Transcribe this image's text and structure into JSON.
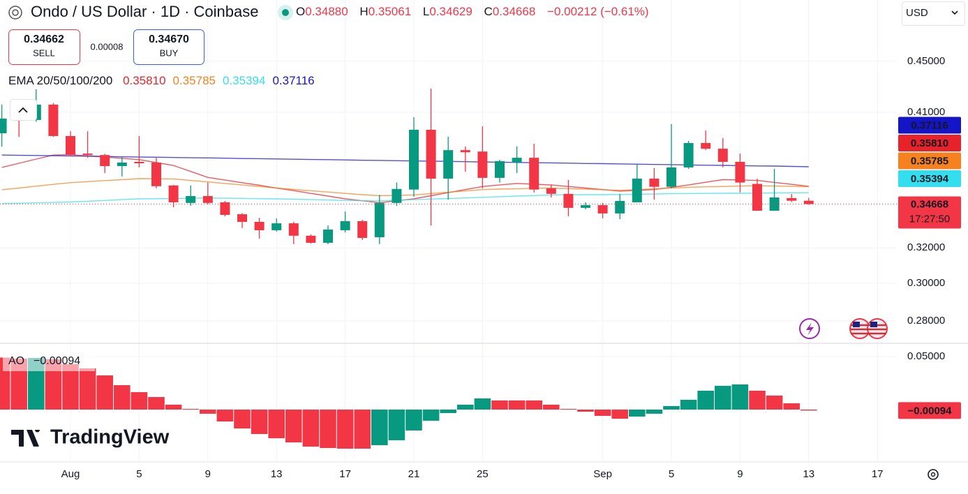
{
  "ui": {
    "currency": "USD",
    "logo": "TradingView",
    "trade": {
      "sell": {
        "price": "0.34662",
        "label": "SELL"
      },
      "spread": "0.00008",
      "buy": {
        "price": "0.34670",
        "label": "BUY"
      }
    },
    "header": {
      "fields": [
        {
          "key": "O",
          "value": "0.34880"
        },
        {
          "key": "H",
          "value": "0.35061"
        },
        {
          "key": "L",
          "value": "0.34629"
        },
        {
          "key": "C",
          "value": "0.34668"
        }
      ],
      "change": "−0.00212 (−0.61%)"
    }
  },
  "chart_data": [
    {
      "type": "candlestick",
      "title": "Ondo / US Dollar · 1D · Coinbase",
      "categories": [
        null,
        null,
        null,
        null,
        "Aug",
        null,
        null,
        null,
        "5",
        null,
        null,
        null,
        "9",
        null,
        null,
        null,
        "13",
        null,
        null,
        null,
        "17",
        null,
        null,
        null,
        "21",
        null,
        null,
        null,
        "25",
        null,
        null,
        null,
        null,
        null,
        null,
        "Sep",
        null,
        null,
        null,
        "5",
        null,
        null,
        null,
        "9",
        null,
        null,
        null,
        "13",
        null,
        null,
        null,
        "17"
      ],
      "open": [
        0.3946,
        0.4053,
        0.4043,
        0.4158,
        0.3926,
        0.3802,
        0.3792,
        0.3716,
        0.3745,
        0.374,
        0.3587,
        0.3474,
        0.3518,
        0.3478,
        0.3403,
        0.3356,
        0.3305,
        0.3347,
        0.3272,
        0.323,
        0.3305,
        0.336,
        0.3263,
        0.3474,
        0.356,
        0.3971,
        0.3632,
        0.3826,
        0.3816,
        0.3637,
        0.374,
        0.3773,
        0.3568,
        0.3532,
        0.3443,
        0.346,
        0.3408,
        0.3478,
        0.3632,
        0.3578,
        0.3707,
        0.3876,
        0.3836,
        0.3745,
        0.3597,
        0.3425,
        0.3505,
        0.3488,
        null,
        null,
        null,
        null
      ],
      "high": [
        0.4158,
        0.411,
        0.4276,
        0.417,
        0.396,
        0.396,
        0.38,
        0.3778,
        0.3926,
        0.3778,
        0.359,
        0.3587,
        0.3606,
        0.3487,
        0.341,
        0.3381,
        0.3377,
        0.3356,
        0.328,
        0.3334,
        0.342,
        0.3368,
        0.3526,
        0.3606,
        0.4064,
        0.4282,
        0.3921,
        0.3851,
        0.3996,
        0.3759,
        0.3851,
        0.3871,
        0.3592,
        0.3623,
        0.3478,
        0.3474,
        0.3532,
        0.3726,
        0.3702,
        0.4012,
        0.3891,
        0.3966,
        0.3911,
        0.3802,
        0.3632,
        0.3697,
        0.3532,
        0.35061,
        null,
        null,
        null,
        null
      ],
      "low": [
        0.3851,
        0.392,
        0.403,
        0.392,
        0.3782,
        0.3773,
        0.3669,
        0.3646,
        0.3707,
        0.3568,
        0.3447,
        0.3456,
        0.3465,
        0.339,
        0.3318,
        0.3255,
        0.3297,
        0.3222,
        0.3226,
        0.3222,
        0.3292,
        0.3247,
        0.3222,
        0.3456,
        0.3513,
        0.3334,
        0.3495,
        0.3678,
        0.3568,
        0.3606,
        0.3669,
        0.3541,
        0.3509,
        0.339,
        0.3434,
        0.3377,
        0.3373,
        0.3478,
        0.3495,
        0.3568,
        0.3697,
        0.3826,
        0.3707,
        0.3541,
        0.3425,
        0.3425,
        0.348,
        0.34629,
        null,
        null,
        null,
        null
      ],
      "close": [
        0.4053,
        0.4037,
        0.4158,
        0.3926,
        0.3792,
        0.3792,
        0.3716,
        0.374,
        0.3735,
        0.3582,
        0.3478,
        0.3518,
        0.3474,
        0.3399,
        0.3356,
        0.3305,
        0.3347,
        0.3272,
        0.323,
        0.3309,
        0.336,
        0.3259,
        0.3474,
        0.3564,
        0.3971,
        0.3632,
        0.3826,
        0.3811,
        0.3637,
        0.375,
        0.3773,
        0.356,
        0.3532,
        0.3443,
        0.346,
        0.3408,
        0.3487,
        0.3632,
        0.3578,
        0.3707,
        0.3876,
        0.3836,
        0.3745,
        0.3606,
        0.3425,
        0.3509,
        0.3488,
        0.34668,
        null,
        null,
        null,
        null
      ],
      "up_color": "#089981",
      "down_color": "#f23645",
      "log_scale": true,
      "ylim": [
        0.2688,
        0.5034
      ],
      "yticks": [
        {
          "value": 0.28,
          "label": "0.28000"
        },
        {
          "value": 0.3,
          "label": "0.30000"
        },
        {
          "value": 0.32,
          "label": "0.32000"
        },
        {
          "value": 0.41,
          "label": "0.41000"
        },
        {
          "value": 0.45,
          "label": "0.45000"
        }
      ],
      "grid": true,
      "countdown": "17:27:50",
      "indicator_label": "EMA 20/50/100/200",
      "series": [
        {
          "color": "#e8222a",
          "last_label": "0.35810",
          "values": [
            0.3707,
            0.3735,
            0.3764,
            0.3792,
            0.3795,
            0.3786,
            0.3778,
            0.3769,
            0.376,
            0.374,
            0.372,
            0.368,
            0.364,
            0.3622,
            0.3605,
            0.3588,
            0.357,
            0.3553,
            0.3535,
            0.3518,
            0.35,
            0.3488,
            0.3475,
            0.3488,
            0.35,
            0.352,
            0.354,
            0.356,
            0.358,
            0.359,
            0.36,
            0.3595,
            0.359,
            0.358,
            0.357,
            0.356,
            0.355,
            0.3555,
            0.356,
            0.3575,
            0.359,
            0.3608,
            0.3625,
            0.3623,
            0.362,
            0.3607,
            0.3594,
            0.3581,
            null,
            null,
            null,
            null
          ]
        },
        {
          "color": "#f5821f",
          "last_label": "0.35785",
          "values": [
            0.3559,
            0.357,
            0.3582,
            0.3594,
            0.3605,
            0.3612,
            0.3619,
            0.3625,
            0.3632,
            0.3631,
            0.363,
            0.362,
            0.361,
            0.36,
            0.359,
            0.358,
            0.357,
            0.3561,
            0.3552,
            0.3544,
            0.3535,
            0.3527,
            0.352,
            0.3522,
            0.3525,
            0.3534,
            0.3543,
            0.3551,
            0.356,
            0.3563,
            0.3565,
            0.3568,
            0.357,
            0.3566,
            0.3563,
            0.3559,
            0.3555,
            0.356,
            0.3565,
            0.357,
            0.3575,
            0.3578,
            0.358,
            0.3583,
            0.3585,
            0.3583,
            0.3581,
            0.35785,
            null,
            null,
            null,
            null
          ]
        },
        {
          "color": "#33dfee",
          "last_label": "0.35394",
          "values": [
            0.347,
            0.3472,
            0.3475,
            0.3477,
            0.348,
            0.3485,
            0.349,
            0.3495,
            0.35,
            0.3501,
            0.3502,
            0.3504,
            0.3505,
            0.3504,
            0.3503,
            0.3501,
            0.35,
            0.3498,
            0.3495,
            0.3493,
            0.349,
            0.3488,
            0.3487,
            0.3491,
            0.3495,
            0.3499,
            0.3502,
            0.3506,
            0.351,
            0.3514,
            0.3518,
            0.3521,
            0.3525,
            0.3526,
            0.3527,
            0.3527,
            0.3528,
            0.353,
            0.3531,
            0.3533,
            0.3534,
            0.3535,
            0.3536,
            0.3536,
            0.3537,
            0.3538,
            0.3539,
            0.35394,
            null,
            null,
            null,
            null
          ]
        },
        {
          "color": "#1515c8",
          "last_label": "0.37116",
          "values": [
            0.3792,
            0.379,
            0.3789,
            0.3787,
            0.3785,
            0.3784,
            0.3782,
            0.378,
            0.3778,
            0.3777,
            0.3775,
            0.3773,
            0.3772,
            0.377,
            0.3768,
            0.3767,
            0.3765,
            0.3763,
            0.3761,
            0.376,
            0.3758,
            0.3756,
            0.3755,
            0.3753,
            0.3751,
            0.375,
            0.3748,
            0.3746,
            0.3744,
            0.3743,
            0.3741,
            0.3739,
            0.3738,
            0.3736,
            0.3734,
            0.3733,
            0.3731,
            0.3729,
            0.3727,
            0.3726,
            0.3724,
            0.3722,
            0.3721,
            0.3719,
            0.3717,
            0.3716,
            0.3714,
            0.37116,
            null,
            null,
            null,
            null
          ]
        }
      ]
    },
    {
      "type": "histogram",
      "title": "AO",
      "values": [
        0.049,
        0.048,
        0.0487,
        0.0474,
        0.0428,
        0.0388,
        0.0322,
        0.023,
        0.0164,
        0.0118,
        0.0046,
        0.0007,
        -0.0039,
        -0.0112,
        -0.0178,
        -0.023,
        -0.027,
        -0.0309,
        -0.0349,
        -0.0362,
        -0.0368,
        -0.0368,
        -0.0336,
        -0.0289,
        -0.0197,
        -0.0105,
        -0.0033,
        0.0046,
        0.0105,
        0.0086,
        0.0086,
        0.0086,
        0.0046,
        0.0007,
        -0.002,
        -0.0059,
        -0.0086,
        -0.0066,
        -0.0039,
        0.0033,
        0.0092,
        0.0178,
        0.0224,
        0.0237,
        0.0178,
        0.0132,
        0.0059,
        -0.00094,
        null,
        null,
        null,
        null
      ],
      "last_label": "−0.00094",
      "rising_color": "#089981",
      "falling_color": "#f23645",
      "ylim": [
        -0.0493,
        0.0618
      ],
      "yticks": [
        {
          "value": 0.05,
          "label": "0.05000"
        }
      ]
    }
  ]
}
